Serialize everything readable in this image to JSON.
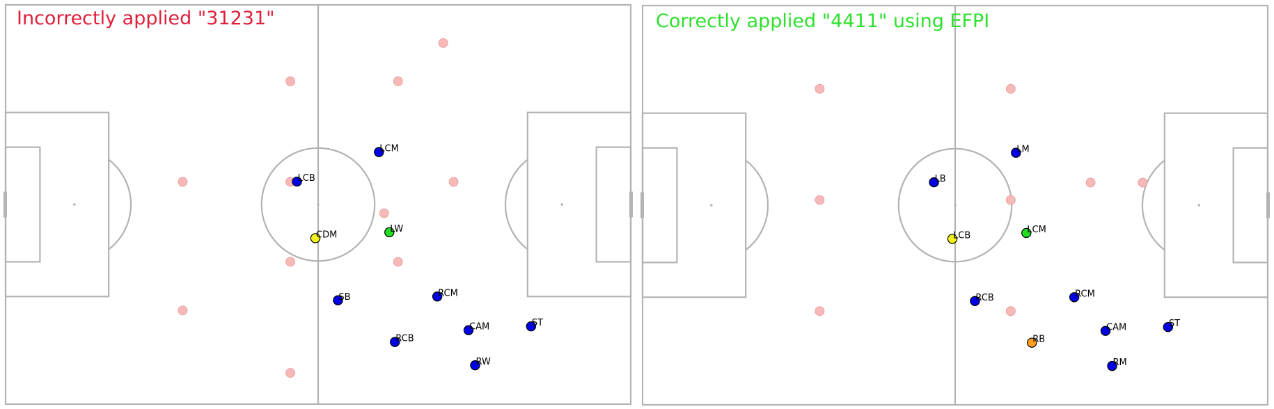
{
  "panels": [
    {
      "title": "Incorrectly applied \"31231\"",
      "title_color": "#e0203a",
      "template_positions": [
        [
          51,
          88
        ],
        [
          82,
          22
        ],
        [
          82,
          51
        ],
        [
          82,
          74
        ],
        [
          51,
          51
        ],
        [
          113,
          22
        ],
        [
          113,
          74
        ],
        [
          129,
          51
        ],
        [
          126,
          11
        ],
        [
          82,
          106
        ],
        [
          109,
          60
        ]
      ],
      "players": [
        {
          "label": "LCB",
          "x": 83.9,
          "y": 50.9,
          "color": "#0000e6"
        },
        {
          "label": "LCM",
          "x": 107.5,
          "y": 42.4,
          "color": "#0000e6"
        },
        {
          "label": "CDM",
          "x": 89.2,
          "y": 67.2,
          "color": "#f2f21a"
        },
        {
          "label": "LW",
          "x": 110.5,
          "y": 65.5,
          "color": "#22dd22"
        },
        {
          "label": "SB",
          "x": 95.7,
          "y": 85.1,
          "color": "#0000e6"
        },
        {
          "label": "RCM",
          "x": 124.3,
          "y": 84.0,
          "color": "#0000e6"
        },
        {
          "label": "CAM",
          "x": 133.3,
          "y": 93.7,
          "color": "#0000e6"
        },
        {
          "label": "ST",
          "x": 151.3,
          "y": 92.6,
          "color": "#0000e6"
        },
        {
          "label": "RCB",
          "x": 112.1,
          "y": 97.1,
          "color": "#0000e6"
        },
        {
          "label": "RW",
          "x": 135.2,
          "y": 103.8,
          "color": "#0000e6"
        }
      ]
    },
    {
      "title": "Correctly applied \"4411\" using EFPI",
      "title_color": "#2ee02e",
      "template_positions": [
        [
          51,
          24
        ],
        [
          51,
          56
        ],
        [
          51,
          88
        ],
        [
          51,
          118
        ],
        [
          106,
          24
        ],
        [
          106,
          56
        ],
        [
          106,
          88
        ],
        [
          106,
          118
        ],
        [
          129,
          51
        ],
        [
          144,
          51
        ],
        [
          106,
          88
        ]
      ],
      "players": [
        {
          "label": "LB",
          "x": 83.9,
          "y": 50.9,
          "color": "#0000e6"
        },
        {
          "label": "LM",
          "x": 107.5,
          "y": 42.4,
          "color": "#0000e6"
        },
        {
          "label": "LCB",
          "x": 89.2,
          "y": 67.2,
          "color": "#f2f21a"
        },
        {
          "label": "LCM",
          "x": 110.5,
          "y": 65.5,
          "color": "#22dd22"
        },
        {
          "label": "RCB",
          "x": 95.7,
          "y": 85.1,
          "color": "#0000e6"
        },
        {
          "label": "RCM",
          "x": 124.3,
          "y": 84.0,
          "color": "#0000e6"
        },
        {
          "label": "CAM",
          "x": 133.3,
          "y": 93.7,
          "color": "#0000e6"
        },
        {
          "label": "ST",
          "x": 151.3,
          "y": 92.6,
          "color": "#0000e6"
        },
        {
          "label": "RB",
          "x": 112.1,
          "y": 97.1,
          "color": "#ff9f1a"
        },
        {
          "label": "RM",
          "x": 135.2,
          "y": 103.8,
          "color": "#0000e6"
        }
      ]
    }
  ],
  "colors": {
    "pitch_line": "#b3b3b3",
    "template_marker": "#f7b8b8",
    "template_marker_edge": "#e89a9a",
    "player_edge": "#000000",
    "label": "#000000"
  }
}
